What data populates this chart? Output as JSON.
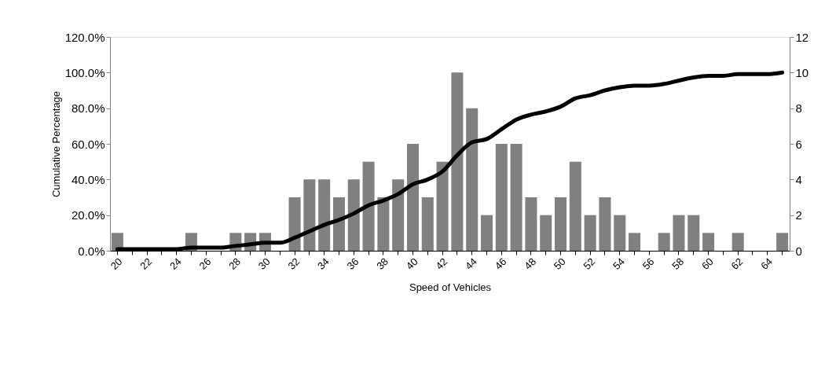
{
  "chart_data": {
    "type": "bar",
    "xlabel": "Speed of Vehicles",
    "ylabel": "Cumulative Percentage",
    "categories": [
      "20",
      null,
      "22",
      null,
      "24",
      null,
      "26",
      null,
      "28",
      null,
      "30",
      null,
      "32",
      null,
      "34",
      null,
      "36",
      null,
      "38",
      null,
      "40",
      null,
      "42",
      null,
      "44",
      null,
      "46",
      null,
      "48",
      null,
      "50",
      null,
      "52",
      null,
      "54",
      null,
      "56",
      null,
      "58",
      null,
      "60",
      null,
      "62",
      null,
      "64",
      null
    ],
    "ylim": [
      0,
      120
    ],
    "yticks": [
      {
        "value": 0,
        "label": "0.0%"
      },
      {
        "value": 20,
        "label": "20.0%"
      },
      {
        "value": 40,
        "label": "40.0%"
      },
      {
        "value": 60,
        "label": "60.0%"
      },
      {
        "value": 80,
        "label": "80.0%"
      },
      {
        "value": 100,
        "label": "100.0%"
      },
      {
        "value": 120,
        "label": "120.0%"
      }
    ],
    "y2lim": [
      0,
      12
    ],
    "y2ticks": [
      0,
      2,
      4,
      6,
      8,
      10,
      12
    ],
    "line_style": "solid",
    "series": [
      {
        "axis": "y2",
        "color": "#808080",
        "values": [
          1,
          0,
          0,
          0,
          0,
          1,
          0,
          0,
          1,
          1,
          1,
          0,
          3,
          4,
          4,
          3,
          4,
          5,
          3,
          4,
          6,
          3,
          5,
          10,
          8,
          2,
          6,
          6,
          3,
          2,
          3,
          5,
          2,
          3,
          2,
          1,
          0,
          1,
          2,
          2,
          1,
          0,
          1,
          0,
          0,
          1
        ]
      },
      {
        "type": "line",
        "color": "#000000",
        "values": [
          0.9,
          0.9,
          0.9,
          0.9,
          0.9,
          1.8,
          1.8,
          1.8,
          2.7,
          3.6,
          4.5,
          4.5,
          7.3,
          10.9,
          14.5,
          17.3,
          20.9,
          25.5,
          28.2,
          31.8,
          37.3,
          40.0,
          44.5,
          53.6,
          60.9,
          62.7,
          68.2,
          73.6,
          76.4,
          78.2,
          80.9,
          85.5,
          87.3,
          90.0,
          91.8,
          92.7,
          92.7,
          93.6,
          95.5,
          97.3,
          98.2,
          98.2,
          99.1,
          99.1,
          99.1,
          100.0
        ]
      }
    ]
  }
}
